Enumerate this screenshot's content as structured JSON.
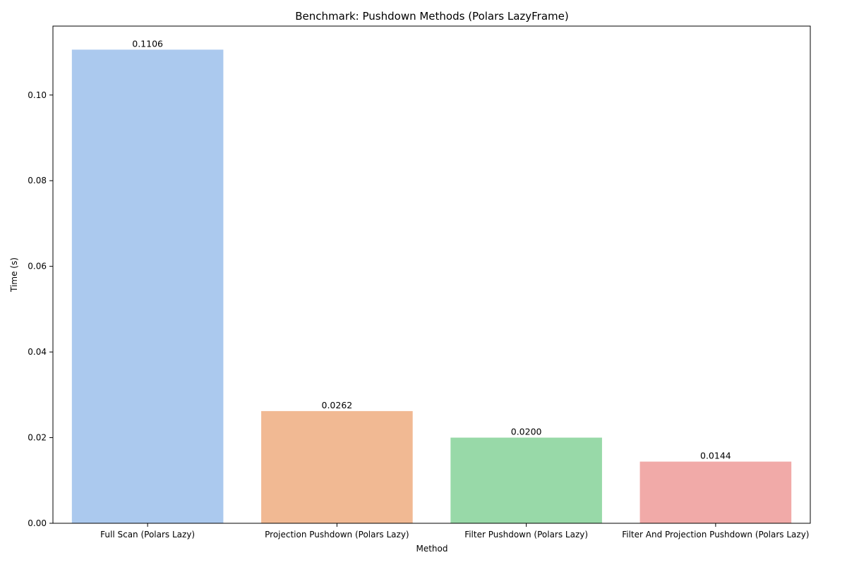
{
  "chart_data": {
    "type": "bar",
    "title": "Benchmark: Pushdown Methods (Polars LazyFrame)",
    "xlabel": "Method",
    "ylabel": "Time (s)",
    "categories": [
      "Full Scan (Polars Lazy)",
      "Projection Pushdown (Polars Lazy)",
      "Filter Pushdown (Polars Lazy)",
      "Filter And Projection Pushdown (Polars Lazy)"
    ],
    "values": [
      0.1106,
      0.0262,
      0.02,
      0.0144
    ],
    "value_labels": [
      "0.1106",
      "0.0262",
      "0.0200",
      "0.0144"
    ],
    "bar_colors": [
      "#abc9ee",
      "#f1b993",
      "#98d9a8",
      "#f1aaa8"
    ],
    "ylim": [
      0,
      0.1161
    ],
    "yticks": [
      0.0,
      0.02,
      0.04,
      0.06,
      0.08,
      0.1
    ],
    "ytick_labels": [
      "0.00",
      "0.02",
      "0.04",
      "0.06",
      "0.08",
      "0.10"
    ],
    "grid": false,
    "legend": "none"
  }
}
